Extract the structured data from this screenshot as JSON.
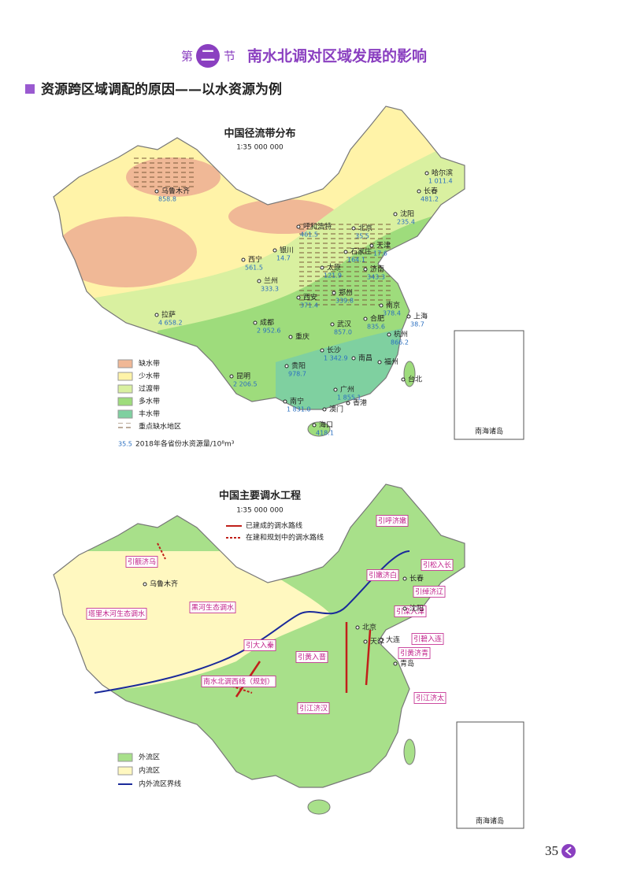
{
  "header": {
    "prefix": "第",
    "number": "二",
    "suffix": "节",
    "title": "南水北调对区域发展的影响"
  },
  "section": {
    "title": "资源跨区域调配的原因——以水资源为例"
  },
  "map1": {
    "title": "中国径流带分布",
    "scale": "1∶35 000 000",
    "legend": [
      "缺水带",
      "少水带",
      "过渡带",
      "多水带",
      "丰水带",
      "重点缺水地区"
    ],
    "legend_note": {
      "value": "35.5",
      "label": "2018年各省份水资源量/10⁸m³"
    },
    "cities": [
      {
        "name": "乌鲁木齐",
        "value": "858.8"
      },
      {
        "name": "哈尔滨",
        "value": "1 011.4"
      },
      {
        "name": "长春",
        "value": "481.2"
      },
      {
        "name": "沈阳",
        "value": "235.4"
      },
      {
        "name": "呼和浩特",
        "value": "461.5"
      },
      {
        "name": "北京",
        "value": "35.5"
      },
      {
        "name": "天津",
        "value": "17.6"
      },
      {
        "name": "石家庄",
        "value": "164.1"
      },
      {
        "name": "银川",
        "value": "14.7"
      },
      {
        "name": "西宁",
        "value": "561.5"
      },
      {
        "name": "太原",
        "value": "121.9"
      },
      {
        "name": "济南",
        "value": "343.3"
      },
      {
        "name": "兰州",
        "value": "333.3"
      },
      {
        "name": "郑州",
        "value": "339.8"
      },
      {
        "name": "西安",
        "value": "371.4"
      },
      {
        "name": "南京",
        "value": "378.4"
      },
      {
        "name": "上海",
        "value": "38.7"
      },
      {
        "name": "拉萨",
        "value": "4 658.2"
      },
      {
        "name": "成都",
        "value": "2 952.6"
      },
      {
        "name": "合肥",
        "value": "835.6"
      },
      {
        "name": "武汉",
        "value": "857.0"
      },
      {
        "name": "杭州",
        "value": "866.2"
      },
      {
        "name": "长沙",
        "value": "1 342.9"
      },
      {
        "name": "贵阳",
        "value": "978.7"
      },
      {
        "name": "昆明",
        "value": "2 206.5"
      },
      {
        "name": "广州",
        "value": "1 855.1"
      },
      {
        "name": "南宁",
        "value": "1 831.0"
      },
      {
        "name": "海口",
        "value": "418.1"
      }
    ],
    "places": [
      "重庆",
      "南昌",
      "福州",
      "台北",
      "香港",
      "澳门"
    ],
    "inset": "南海诸岛"
  },
  "map2": {
    "title": "中国主要调水工程",
    "scale": "1∶35 000 000",
    "routes_legend": [
      "已建成的调水路线",
      "在建和规划中的调水路线"
    ],
    "projects": [
      "引呼济嫩",
      "引额济乌",
      "引松入长",
      "引嫩济白",
      "引绰济辽",
      "塔里木河生态调水",
      "黑河生态调水",
      "引滦入津",
      "引碧入连",
      "引大入秦",
      "引黄入晋",
      "引黄济青",
      "南水北调西线（规划）",
      "引江济汉",
      "引江济太"
    ],
    "cities": [
      "乌鲁木齐",
      "长春",
      "沈阳",
      "北京",
      "天津",
      "大连",
      "青岛"
    ],
    "legend": [
      "外流区",
      "内流区",
      "内外流区界线"
    ],
    "inset": "南海诸岛"
  },
  "page_number": "35"
}
